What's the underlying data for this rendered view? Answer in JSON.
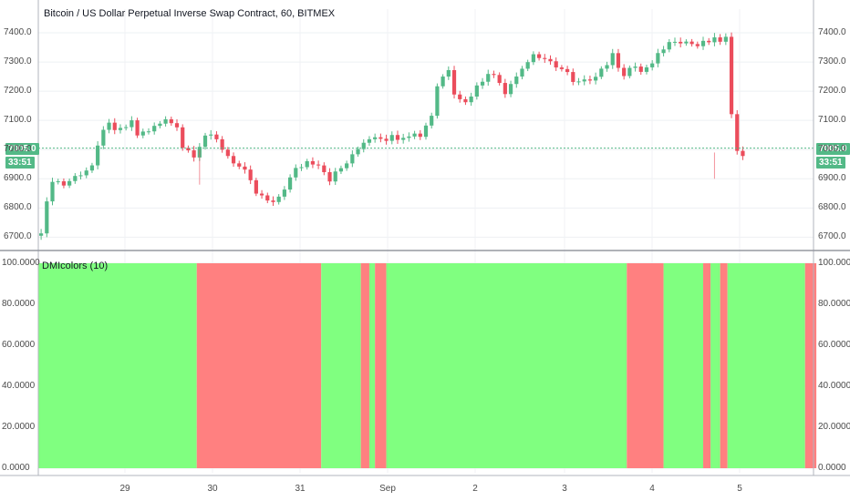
{
  "header": {
    "title": "Bitcoin / US Dollar Perpetual Inverse Swap Contract, 60, BITMEX"
  },
  "indicator": {
    "title": "DMIcolors (10)"
  },
  "badges": {
    "price": "7005.0",
    "countdown": "33:51"
  },
  "colors": {
    "up": "#53b987",
    "down": "#eb4d5c",
    "indicator_bull": "#80ff80",
    "indicator_bear": "#ff8080"
  },
  "chart_data": [
    {
      "type": "candlestick",
      "title": "Bitcoin / US Dollar Perpetual Inverse Swap Contract, 60, BITMEX",
      "ylim": [
        6670,
        7450
      ],
      "yticks": [
        "6700.0",
        "6800.0",
        "6900.0",
        "7000.0",
        "7100.0",
        "7200.0",
        "7300.0",
        "7400.0"
      ],
      "xticks": [
        "29",
        "30",
        "31",
        "Sep",
        "2",
        "3",
        "4",
        "5"
      ],
      "last_price": 7005.0,
      "close_path": [
        [
          0,
          6725
        ],
        [
          2,
          6900
        ],
        [
          4,
          6880
        ],
        [
          7,
          6920
        ],
        [
          9,
          6945
        ],
        [
          11,
          7060
        ],
        [
          12,
          7100
        ],
        [
          13,
          7055
        ],
        [
          16,
          7090
        ],
        [
          17,
          7050
        ],
        [
          20,
          7075
        ],
        [
          22,
          7100
        ],
        [
          24,
          7085
        ],
        [
          25,
          7010
        ],
        [
          27,
          6985
        ],
        [
          29,
          7050
        ],
        [
          31,
          7030
        ],
        [
          33,
          6980
        ],
        [
          36,
          6920
        ],
        [
          38,
          6850
        ],
        [
          41,
          6810
        ],
        [
          43,
          6870
        ],
        [
          45,
          6930
        ],
        [
          47,
          6960
        ],
        [
          49,
          6955
        ],
        [
          51,
          6900
        ],
        [
          53,
          6935
        ],
        [
          55,
          6975
        ],
        [
          57,
          7030
        ],
        [
          59,
          7050
        ],
        [
          61,
          7040
        ],
        [
          63,
          7045
        ],
        [
          65,
          7055
        ],
        [
          67,
          7050
        ],
        [
          69,
          7120
        ],
        [
          70,
          7220
        ],
        [
          72,
          7280
        ],
        [
          73,
          7200
        ],
        [
          75,
          7160
        ],
        [
          76,
          7190
        ],
        [
          78,
          7240
        ],
        [
          79,
          7270
        ],
        [
          81,
          7230
        ],
        [
          82,
          7200
        ],
        [
          84,
          7260
        ],
        [
          86,
          7300
        ],
        [
          87,
          7330
        ],
        [
          89,
          7300
        ],
        [
          91,
          7290
        ],
        [
          93,
          7260
        ],
        [
          94,
          7225
        ],
        [
          96,
          7230
        ],
        [
          98,
          7260
        ],
        [
          100,
          7295
        ],
        [
          101,
          7320
        ],
        [
          103,
          7260
        ],
        [
          104,
          7280
        ],
        [
          106,
          7270
        ],
        [
          108,
          7290
        ],
        [
          110,
          7350
        ],
        [
          112,
          7380
        ],
        [
          114,
          7370
        ],
        [
          116,
          7355
        ],
        [
          118,
          7370
        ],
        [
          120,
          7375
        ],
        [
          121,
          7380
        ],
        [
          122,
          7110
        ],
        [
          123,
          7005
        ],
        [
          124,
          6990
        ]
      ],
      "wick_spikes": [
        [
          28,
          6880,
          7000
        ],
        [
          119,
          6900,
          6990
        ]
      ]
    },
    {
      "type": "area",
      "title": "DMIcolors (10)",
      "ylim": [
        0,
        100
      ],
      "yticks": [
        "0.0000",
        "20.0000",
        "40.0000",
        "60.0000",
        "80.0000",
        "100.0000"
      ],
      "value": 100,
      "segments": [
        {
          "start": 0,
          "end": 28,
          "state": "bull"
        },
        {
          "start": 28,
          "end": 50,
          "state": "bear"
        },
        {
          "start": 50,
          "end": 57,
          "state": "bull"
        },
        {
          "start": 57,
          "end": 58.5,
          "state": "bear"
        },
        {
          "start": 58.5,
          "end": 59.5,
          "state": "bull"
        },
        {
          "start": 59.5,
          "end": 61.5,
          "state": "bear"
        },
        {
          "start": 61.5,
          "end": 104,
          "state": "bull"
        },
        {
          "start": 104,
          "end": 110.5,
          "state": "bear"
        },
        {
          "start": 110.5,
          "end": 117.5,
          "state": "bull"
        },
        {
          "start": 117.5,
          "end": 118.8,
          "state": "bear"
        },
        {
          "start": 118.8,
          "end": 120.5,
          "state": "bull"
        },
        {
          "start": 120.5,
          "end": 121.8,
          "state": "bear"
        },
        {
          "start": 121.8,
          "end": 135.5,
          "state": "bull"
        },
        {
          "start": 135.5,
          "end": 137.5,
          "state": "bear"
        }
      ]
    }
  ]
}
